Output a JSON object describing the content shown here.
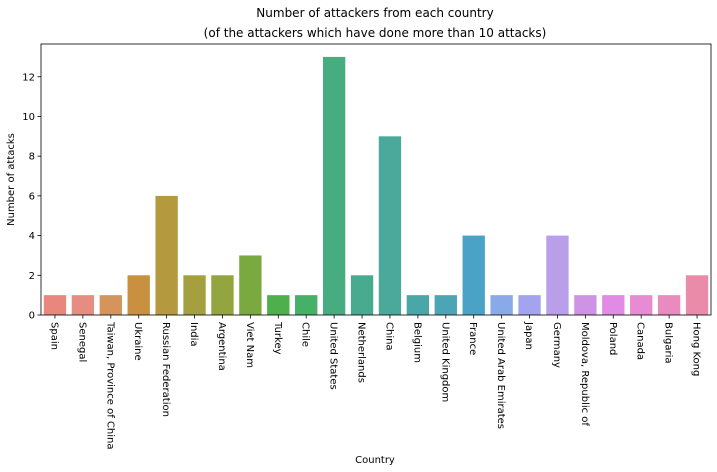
{
  "chart_data": {
    "type": "bar",
    "title": "Number of attackers from each country",
    "subtitle": "(of the attackers which have done more than 10 attacks)",
    "xlabel": "Country",
    "ylabel": "Number of attacks",
    "ylim": [
      0,
      13.65
    ],
    "yticks": [
      0,
      2,
      4,
      6,
      8,
      10,
      12
    ],
    "grid": false,
    "legend": "none",
    "categories": [
      "Spain",
      "Senegal",
      "Taiwan, Province of China",
      "Ukraine",
      "Russian Federation",
      "India",
      "Argentina",
      "Viet Nam",
      "Turkey",
      "Chile",
      "United States",
      "Netherlands",
      "China",
      "Belgium",
      "United Kingdom",
      "France",
      "United Arab Emirates",
      "Japan",
      "Germany",
      "Moldova, Republic of",
      "Poland",
      "Canada",
      "Bulgaria",
      "Hong Kong"
    ],
    "values": [
      1,
      1,
      1,
      2,
      6,
      2,
      2,
      3,
      1,
      1,
      13,
      2,
      9,
      1,
      1,
      4,
      1,
      1,
      4,
      1,
      1,
      1,
      1,
      2
    ],
    "colors": [
      "#e9877c",
      "#e78c80",
      "#d4945c",
      "#c9913f",
      "#b5993f",
      "#a5a03f",
      "#92a53f",
      "#7aaa3f",
      "#4db04d",
      "#44b068",
      "#47ad80",
      "#48ab8f",
      "#4aa99b",
      "#4aa7a8",
      "#4ba5b4",
      "#4aa3c6",
      "#8aa9e9",
      "#a3a3ee",
      "#b99ee9",
      "#cf93e6",
      "#e08be4",
      "#e78bd2",
      "#e98bbf",
      "#e98ba9"
    ]
  }
}
